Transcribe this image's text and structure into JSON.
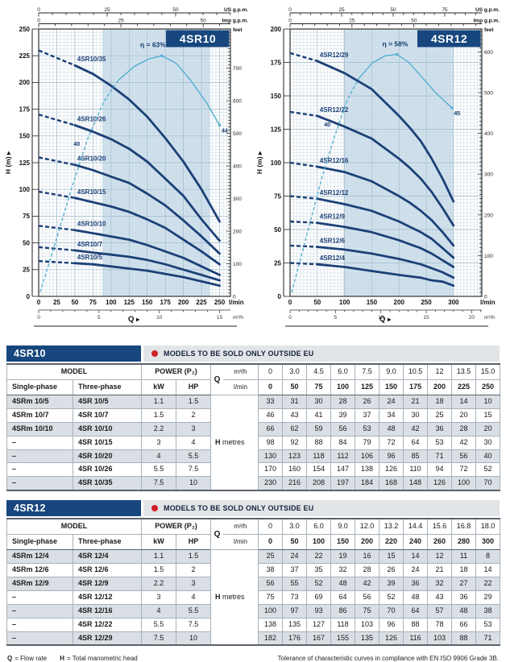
{
  "colors": {
    "navy": "#17477e",
    "curve": "#1c4077",
    "eff": "#4aabce",
    "shade": "#cfe1ed",
    "grid_minor": "#c9d8e2",
    "grid_major": "#a2bac9",
    "frame": "#333333",
    "red": "#cf2027",
    "row_alt": "#d9dfe4"
  },
  "chart_data": [
    {
      "type": "line",
      "badge": "4SR10",
      "q_label": "Q",
      "y_axis": {
        "label": "H (m)",
        "max": 250,
        "major": 25,
        "minor": 3.125
      },
      "x_axis": {
        "unit": "l/min",
        "max_lmin": 250,
        "major": 25,
        "minor": 5,
        "domain": 265
      },
      "m3h_axis": {
        "unit": "m³/h",
        "labels": [
          0,
          5,
          10,
          15
        ],
        "lmin_per_m3h": 16.667
      },
      "us_axis": {
        "unit": "US g.p.m.",
        "labels": [
          0,
          25,
          50
        ],
        "minor": 5,
        "lmin_per_unit": 3.785
      },
      "imp_axis": {
        "unit": "Imp g.p.m.",
        "labels": [
          0,
          25,
          50
        ],
        "minor": 5,
        "lmin_per_unit": 4.546
      },
      "feet_axis": {
        "unit": "feet",
        "label_step": 100,
        "max_label": 700,
        "tick_step": 10,
        "m_per_foot": 0.3048
      },
      "shade_lmin": [
        88,
        237
      ],
      "categories_lmin": [
        0,
        50,
        75,
        100,
        125,
        150,
        175,
        200,
        225,
        250
      ],
      "series": [
        {
          "name": "4SR10/35",
          "H": [
            230,
            216,
            208,
            197,
            184,
            168,
            148,
            126,
            100,
            70
          ]
        },
        {
          "name": "4SR10/26",
          "H": [
            170,
            160,
            154,
            147,
            138,
            126,
            110,
            94,
            72,
            52
          ]
        },
        {
          "name": "4SR10/20",
          "H": [
            130,
            123,
            118,
            112,
            106,
            96,
            85,
            71,
            56,
            40
          ]
        },
        {
          "name": "4SR10/15",
          "H": [
            98,
            92,
            88,
            84,
            79,
            72,
            64,
            53,
            42,
            30
          ]
        },
        {
          "name": "4SR10/10",
          "H": [
            66,
            62,
            59,
            56,
            53,
            48,
            42,
            36,
            28,
            20
          ]
        },
        {
          "name": "4SR10/7",
          "H": [
            46,
            43,
            41,
            39,
            37,
            34,
            30,
            25,
            20,
            15
          ]
        },
        {
          "name": "4SR10/5",
          "H": [
            33,
            31,
            30,
            28,
            26,
            24,
            21,
            18,
            14,
            10
          ]
        }
      ],
      "efficiency": {
        "curve_label": "η = 63%",
        "label_at": [
          158,
          233
        ],
        "points_lmin_H": [
          [
            2,
            4
          ],
          [
            22,
            48
          ],
          [
            45,
            100
          ],
          [
            68,
            148
          ],
          [
            90,
            182
          ],
          [
            110,
            202
          ],
          [
            132,
            215
          ],
          [
            152,
            222
          ],
          [
            170,
            225
          ],
          [
            190,
            218
          ],
          [
            210,
            202
          ],
          [
            232,
            181
          ],
          [
            250,
            160
          ]
        ],
        "solid_from": 5,
        "peak_index": 8,
        "start_label": "40",
        "start_label_at": [
          57,
          141
        ],
        "end_label": "44"
      }
    },
    {
      "type": "line",
      "badge": "4SR12",
      "q_label": "Q",
      "y_axis": {
        "label": "H (m)",
        "max": 200,
        "major": 25,
        "minor": 2.5
      },
      "x_axis": {
        "unit": "l/min",
        "max_lmin": 300,
        "major": 50,
        "minor": 6.25,
        "domain": 352
      },
      "m3h_axis": {
        "unit": "m³/h",
        "labels": [
          0,
          5,
          10,
          15,
          20
        ],
        "lmin_per_m3h": 16.667
      },
      "us_axis": {
        "unit": "US g.p.m.",
        "labels": [
          0,
          25,
          50,
          75
        ],
        "minor": 5,
        "lmin_per_unit": 3.785
      },
      "imp_axis": {
        "unit": "Imp g.p.m.",
        "labels": [
          0,
          25,
          50
        ],
        "minor": 5,
        "lmin_per_unit": 4.546
      },
      "feet_axis": {
        "unit": "feet",
        "label_step": 100,
        "max_label": 600,
        "tick_step": 10,
        "m_per_foot": 0.3048
      },
      "shade_lmin": [
        98,
        300
      ],
      "categories_lmin": [
        0,
        50,
        100,
        150,
        200,
        220,
        240,
        260,
        280,
        300
      ],
      "series": [
        {
          "name": "4SR12/29",
          "H": [
            182,
            176,
            167,
            155,
            135,
            126,
            116,
            103,
            88,
            71
          ]
        },
        {
          "name": "4SR12/22",
          "H": [
            138,
            135,
            127,
            118,
            103,
            96,
            88,
            78,
            66,
            53
          ]
        },
        {
          "name": "4SR12/16",
          "H": [
            100,
            97,
            93,
            86,
            75,
            70,
            64,
            57,
            48,
            38
          ]
        },
        {
          "name": "4SR12/12",
          "H": [
            75,
            73,
            69,
            64,
            56,
            52,
            48,
            43,
            36,
            29
          ]
        },
        {
          "name": "4SR12/9",
          "H": [
            56,
            55,
            52,
            48,
            42,
            39,
            36,
            32,
            27,
            22
          ]
        },
        {
          "name": "4SR12/6",
          "H": [
            38,
            37,
            35,
            32,
            28,
            26,
            24,
            21,
            18,
            14
          ]
        },
        {
          "name": "4SR12/4",
          "H": [
            25,
            24,
            22,
            19,
            16,
            15,
            14,
            12,
            11,
            8
          ]
        }
      ],
      "efficiency": {
        "curve_label": "η = 58%",
        "label_at": [
          193,
          187
        ],
        "points_lmin_H": [
          [
            3,
            3
          ],
          [
            30,
            45
          ],
          [
            58,
            88
          ],
          [
            82,
            120
          ],
          [
            105,
            147
          ],
          [
            126,
            163
          ],
          [
            152,
            175
          ],
          [
            175,
            180
          ],
          [
            196,
            181
          ],
          [
            218,
            175
          ],
          [
            242,
            164
          ],
          [
            268,
            152
          ],
          [
            297,
            141
          ]
        ],
        "solid_from": 5,
        "peak_index": 8,
        "start_label": "40",
        "start_label_at": [
          74,
          127
        ],
        "end_label": "45"
      }
    },
    {
      "type": "table",
      "title": "4SR10",
      "notice": "MODELS TO BE SOLD ONLY OUTSIDE EU",
      "headers": {
        "model": "MODEL",
        "power": "POWER (P₂)",
        "single": "Single-phase",
        "three": "Three-phase",
        "kw": "kW",
        "hp": "HP",
        "q": "Q",
        "m3h": "m³/h",
        "lmin": "l/min",
        "h": "H",
        "metres": "metres"
      },
      "q_m3h": [
        "0",
        "3.0",
        "4.5",
        "6.0",
        "7.5",
        "9.0",
        "10.5",
        "12",
        "13.5",
        "15.0"
      ],
      "q_lmin": [
        "0",
        "50",
        "75",
        "100",
        "125",
        "150",
        "175",
        "200",
        "225",
        "250"
      ],
      "rows": [
        {
          "single": "4SRm 10/5",
          "three": "4SR 10/5",
          "kw": "1.1",
          "hp": "1.5",
          "H": [
            33,
            31,
            30,
            28,
            26,
            24,
            21,
            18,
            14,
            10
          ]
        },
        {
          "single": "4SRm 10/7",
          "three": "4SR 10/7",
          "kw": "1.5",
          "hp": "2",
          "H": [
            46,
            43,
            41,
            39,
            37,
            34,
            30,
            25,
            20,
            15
          ]
        },
        {
          "single": "4SRm 10/10",
          "three": "4SR 10/10",
          "kw": "2.2",
          "hp": "3",
          "H": [
            66,
            62,
            59,
            56,
            53,
            48,
            42,
            36,
            28,
            20
          ]
        },
        {
          "single": "–",
          "three": "4SR 10/15",
          "kw": "3",
          "hp": "4",
          "H": [
            98,
            92,
            88,
            84,
            79,
            72,
            64,
            53,
            42,
            30
          ]
        },
        {
          "single": "–",
          "three": "4SR 10/20",
          "kw": "4",
          "hp": "5.5",
          "H": [
            130,
            123,
            118,
            112,
            106,
            96,
            85,
            71,
            56,
            40
          ]
        },
        {
          "single": "–",
          "three": "4SR 10/26",
          "kw": "5.5",
          "hp": "7.5",
          "H": [
            170,
            160,
            154,
            147,
            138,
            126,
            110,
            94,
            72,
            52
          ]
        },
        {
          "single": "–",
          "three": "4SR 10/35",
          "kw": "7.5",
          "hp": "10",
          "H": [
            230,
            216,
            208,
            197,
            184,
            168,
            148,
            126,
            100,
            70
          ]
        }
      ]
    },
    {
      "type": "table",
      "title": "4SR12",
      "notice": "MODELS TO BE SOLD ONLY OUTSIDE EU",
      "headers": {
        "model": "MODEL",
        "power": "POWER (P₂)",
        "single": "Single-phase",
        "three": "Three-phase",
        "kw": "kW",
        "hp": "HP",
        "q": "Q",
        "m3h": "m³/h",
        "lmin": "l/min",
        "h": "H",
        "metres": "metres"
      },
      "q_m3h": [
        "0",
        "3.0",
        "6.0",
        "9.0",
        "12.0",
        "13.2",
        "14.4",
        "15.6",
        "16.8",
        "18.0"
      ],
      "q_lmin": [
        "0",
        "50",
        "100",
        "150",
        "200",
        "220",
        "240",
        "260",
        "280",
        "300"
      ],
      "rows": [
        {
          "single": "4SRm 12/4",
          "three": "4SR 12/4",
          "kw": "1.1",
          "hp": "1.5",
          "H": [
            25,
            24,
            22,
            19,
            16,
            15,
            14,
            12,
            11,
            8
          ]
        },
        {
          "single": "4SRm 12/6",
          "three": "4SR 12/6",
          "kw": "1.5",
          "hp": "2",
          "H": [
            38,
            37,
            35,
            32,
            28,
            26,
            24,
            21,
            18,
            14
          ]
        },
        {
          "single": "4SRm 12/9",
          "three": "4SR 12/9",
          "kw": "2.2",
          "hp": "3",
          "H": [
            56,
            55,
            52,
            48,
            42,
            39,
            36,
            32,
            27,
            22
          ]
        },
        {
          "single": "–",
          "three": "4SR 12/12",
          "kw": "3",
          "hp": "4",
          "H": [
            75,
            73,
            69,
            64,
            56,
            52,
            48,
            43,
            36,
            29
          ]
        },
        {
          "single": "–",
          "three": "4SR 12/16",
          "kw": "4",
          "hp": "5.5",
          "H": [
            100,
            97,
            93,
            86,
            75,
            70,
            64,
            57,
            48,
            38
          ]
        },
        {
          "single": "–",
          "three": "4SR 12/22",
          "kw": "5.5",
          "hp": "7.5",
          "H": [
            138,
            135,
            127,
            118,
            103,
            96,
            88,
            78,
            66,
            53
          ]
        },
        {
          "single": "–",
          "three": "4SR 12/29",
          "kw": "7.5",
          "hp": "10",
          "H": [
            182,
            176,
            167,
            155,
            135,
            126,
            116,
            103,
            88,
            71
          ]
        }
      ]
    }
  ],
  "footer": {
    "q_symbol": "Q",
    "q_text": "= Flow rate",
    "h_symbol": "H",
    "h_text": "= Total manometric head",
    "tolerance": "Tolerance of characteristic curves in compliance with EN ISO 9906 Grade 3B."
  }
}
